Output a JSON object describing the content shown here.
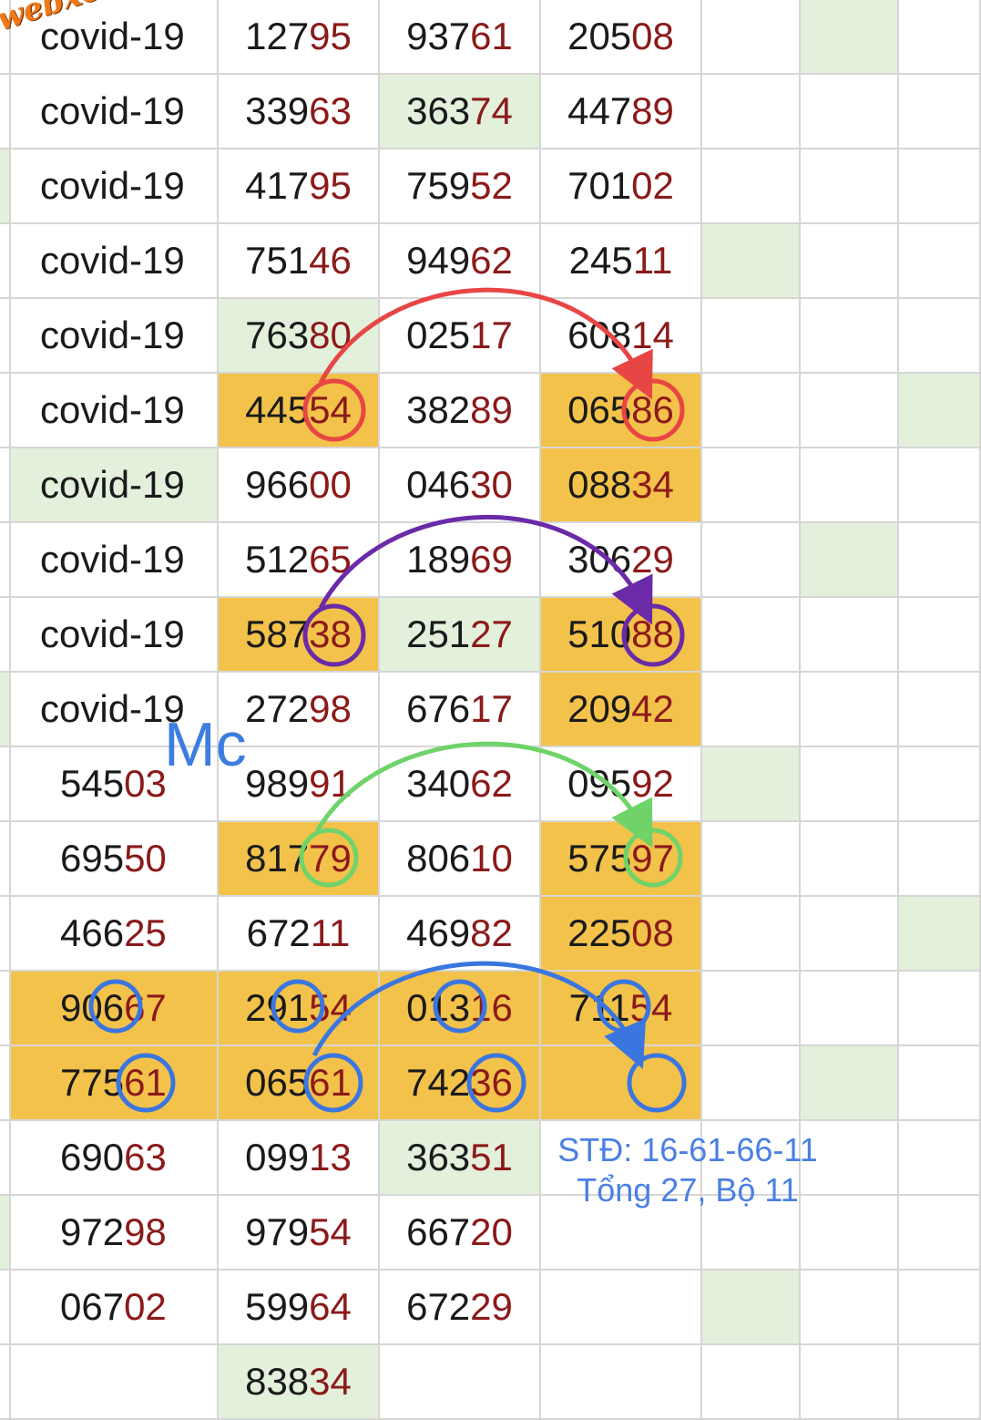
{
  "watermark": "webxoso.net",
  "colors": {
    "cell_yellow": "#f3c24a",
    "cell_green": "#e3f0dc",
    "digit_highlight": "#8b1a1a",
    "arrow_red": "#e84545",
    "arrow_purple": "#6b2aa8",
    "arrow_green": "#6fd36a",
    "arrow_blue": "#3b76e0"
  },
  "rows": [
    {
      "cells": [
        {
          "t": "covid-19",
          "h": 0,
          "bg": ""
        },
        {
          "t": "12795",
          "h": 2,
          "bg": ""
        },
        {
          "t": "93761",
          "h": 2,
          "bg": ""
        },
        {
          "t": "20508",
          "h": 2,
          "bg": ""
        }
      ],
      "extra": [
        "",
        "g",
        "",
        ""
      ]
    },
    {
      "cells": [
        {
          "t": "covid-19",
          "h": 0,
          "bg": ""
        },
        {
          "t": "33963",
          "h": 2,
          "bg": ""
        },
        {
          "t": "36374",
          "h": 2,
          "bg": "g"
        },
        {
          "t": "44789",
          "h": 2,
          "bg": ""
        }
      ],
      "extra": [
        "",
        "",
        "",
        ""
      ]
    },
    {
      "cells": [
        {
          "t": "covid-19",
          "h": 0,
          "bg": ""
        },
        {
          "t": "41795",
          "h": 2,
          "bg": ""
        },
        {
          "t": "75952",
          "h": 2,
          "bg": ""
        },
        {
          "t": "70102",
          "h": 2,
          "bg": ""
        }
      ],
      "extra": [
        "",
        "",
        "",
        ""
      ]
    },
    {
      "cells": [
        {
          "t": "covid-19",
          "h": 0,
          "bg": ""
        },
        {
          "t": "75146",
          "h": 2,
          "bg": ""
        },
        {
          "t": "94962",
          "h": 2,
          "bg": ""
        },
        {
          "t": "24511",
          "h": 2,
          "bg": ""
        }
      ],
      "extra": [
        "g",
        "",
        "",
        ""
      ]
    },
    {
      "cells": [
        {
          "t": "covid-19",
          "h": 0,
          "bg": ""
        },
        {
          "t": "76380",
          "h": 2,
          "bg": "g"
        },
        {
          "t": "02517",
          "h": 2,
          "bg": ""
        },
        {
          "t": "60814",
          "h": 2,
          "bg": ""
        }
      ],
      "extra": [
        "",
        "",
        "",
        ""
      ]
    },
    {
      "cells": [
        {
          "t": "covid-19",
          "h": 0,
          "bg": ""
        },
        {
          "t": "44554",
          "h": 2,
          "bg": "y"
        },
        {
          "t": "38289",
          "h": 2,
          "bg": ""
        },
        {
          "t": "06586",
          "h": 2,
          "bg": "y"
        }
      ],
      "extra": [
        "",
        "",
        "g",
        ""
      ]
    },
    {
      "cells": [
        {
          "t": "covid-19",
          "h": 0,
          "bg": "g"
        },
        {
          "t": "96600",
          "h": 2,
          "bg": ""
        },
        {
          "t": "04630",
          "h": 2,
          "bg": ""
        },
        {
          "t": "08834",
          "h": 2,
          "bg": "y"
        }
      ],
      "extra": [
        "",
        "",
        "",
        ""
      ]
    },
    {
      "cells": [
        {
          "t": "covid-19",
          "h": 0,
          "bg": ""
        },
        {
          "t": "51265",
          "h": 2,
          "bg": ""
        },
        {
          "t": "18969",
          "h": 2,
          "bg": ""
        },
        {
          "t": "30629",
          "h": 2,
          "bg": ""
        }
      ],
      "extra": [
        "",
        "g",
        "",
        ""
      ]
    },
    {
      "cells": [
        {
          "t": "covid-19",
          "h": 0,
          "bg": ""
        },
        {
          "t": "58738",
          "h": 2,
          "bg": "y"
        },
        {
          "t": "25127",
          "h": 2,
          "bg": "g"
        },
        {
          "t": "51088",
          "h": 2,
          "bg": "y"
        }
      ],
      "extra": [
        "",
        "",
        "",
        ""
      ]
    },
    {
      "cells": [
        {
          "t": "covid-19",
          "h": 0,
          "bg": ""
        },
        {
          "t": "27298",
          "h": 2,
          "bg": ""
        },
        {
          "t": "67617",
          "h": 2,
          "bg": ""
        },
        {
          "t": "20942",
          "h": 2,
          "bg": "y"
        }
      ],
      "extra": [
        "",
        "",
        "",
        ""
      ]
    },
    {
      "cells": [
        {
          "t": "54503",
          "h": 2,
          "bg": ""
        },
        {
          "t": "98991",
          "h": 2,
          "bg": ""
        },
        {
          "t": "34062",
          "h": 2,
          "bg": ""
        },
        {
          "t": "09592",
          "h": 2,
          "bg": ""
        }
      ],
      "extra": [
        "g",
        "",
        "",
        ""
      ]
    },
    {
      "cells": [
        {
          "t": "69550",
          "h": 2,
          "bg": ""
        },
        {
          "t": "81779",
          "h": 2,
          "bg": "y"
        },
        {
          "t": "80610",
          "h": 2,
          "bg": ""
        },
        {
          "t": "57597",
          "h": 2,
          "bg": "y"
        }
      ],
      "extra": [
        "",
        "",
        "",
        ""
      ]
    },
    {
      "cells": [
        {
          "t": "46625",
          "h": 2,
          "bg": ""
        },
        {
          "t": "67211",
          "h": 2,
          "bg": ""
        },
        {
          "t": "46982",
          "h": 2,
          "bg": ""
        },
        {
          "t": "22508",
          "h": 2,
          "bg": "y"
        }
      ],
      "extra": [
        "",
        "",
        "g",
        ""
      ]
    },
    {
      "cells": [
        {
          "t": "90667",
          "h": 2,
          "bg": "y"
        },
        {
          "t": "29154",
          "h": 2,
          "bg": "y"
        },
        {
          "t": "01316",
          "h": 2,
          "bg": "y"
        },
        {
          "t": "71154",
          "h": 2,
          "bg": "y"
        }
      ],
      "extra": [
        "",
        "",
        "",
        ""
      ]
    },
    {
      "cells": [
        {
          "t": "77561",
          "h": 2,
          "bg": "y"
        },
        {
          "t": "06561",
          "h": 2,
          "bg": "y"
        },
        {
          "t": "74236",
          "h": 2,
          "bg": "y"
        },
        {
          "t": "",
          "h": 0,
          "bg": "y"
        }
      ],
      "extra": [
        "",
        "g",
        "",
        ""
      ]
    },
    {
      "cells": [
        {
          "t": "69063",
          "h": 2,
          "bg": ""
        },
        {
          "t": "09913",
          "h": 2,
          "bg": ""
        },
        {
          "t": "36351",
          "h": 2,
          "bg": "g"
        },
        {
          "t": "",
          "h": 0,
          "bg": ""
        }
      ],
      "extra": [
        "",
        "",
        "",
        ""
      ]
    },
    {
      "cells": [
        {
          "t": "97298",
          "h": 2,
          "bg": ""
        },
        {
          "t": "97954",
          "h": 2,
          "bg": ""
        },
        {
          "t": "66720",
          "h": 2,
          "bg": ""
        },
        {
          "t": "",
          "h": 0,
          "bg": ""
        }
      ],
      "extra": [
        "",
        "",
        "",
        ""
      ]
    },
    {
      "cells": [
        {
          "t": "06702",
          "h": 2,
          "bg": ""
        },
        {
          "t": "59964",
          "h": 2,
          "bg": ""
        },
        {
          "t": "67229",
          "h": 2,
          "bg": ""
        },
        {
          "t": "",
          "h": 0,
          "bg": ""
        }
      ],
      "extra": [
        "g",
        "",
        "",
        ""
      ]
    },
    {
      "cells": [
        {
          "t": "",
          "h": 0,
          "bg": ""
        },
        {
          "t": "83834",
          "h": 2,
          "bg": "g"
        },
        {
          "t": "",
          "h": 0,
          "bg": ""
        },
        {
          "t": "",
          "h": 0,
          "bg": ""
        }
      ],
      "extra": [
        "",
        "",
        "",
        ""
      ]
    }
  ],
  "annotations": {
    "mc_label": "Mc",
    "std_line1": "STĐ: 16-61-66-11",
    "std_line2": "Tổng 27, Bộ 11"
  }
}
